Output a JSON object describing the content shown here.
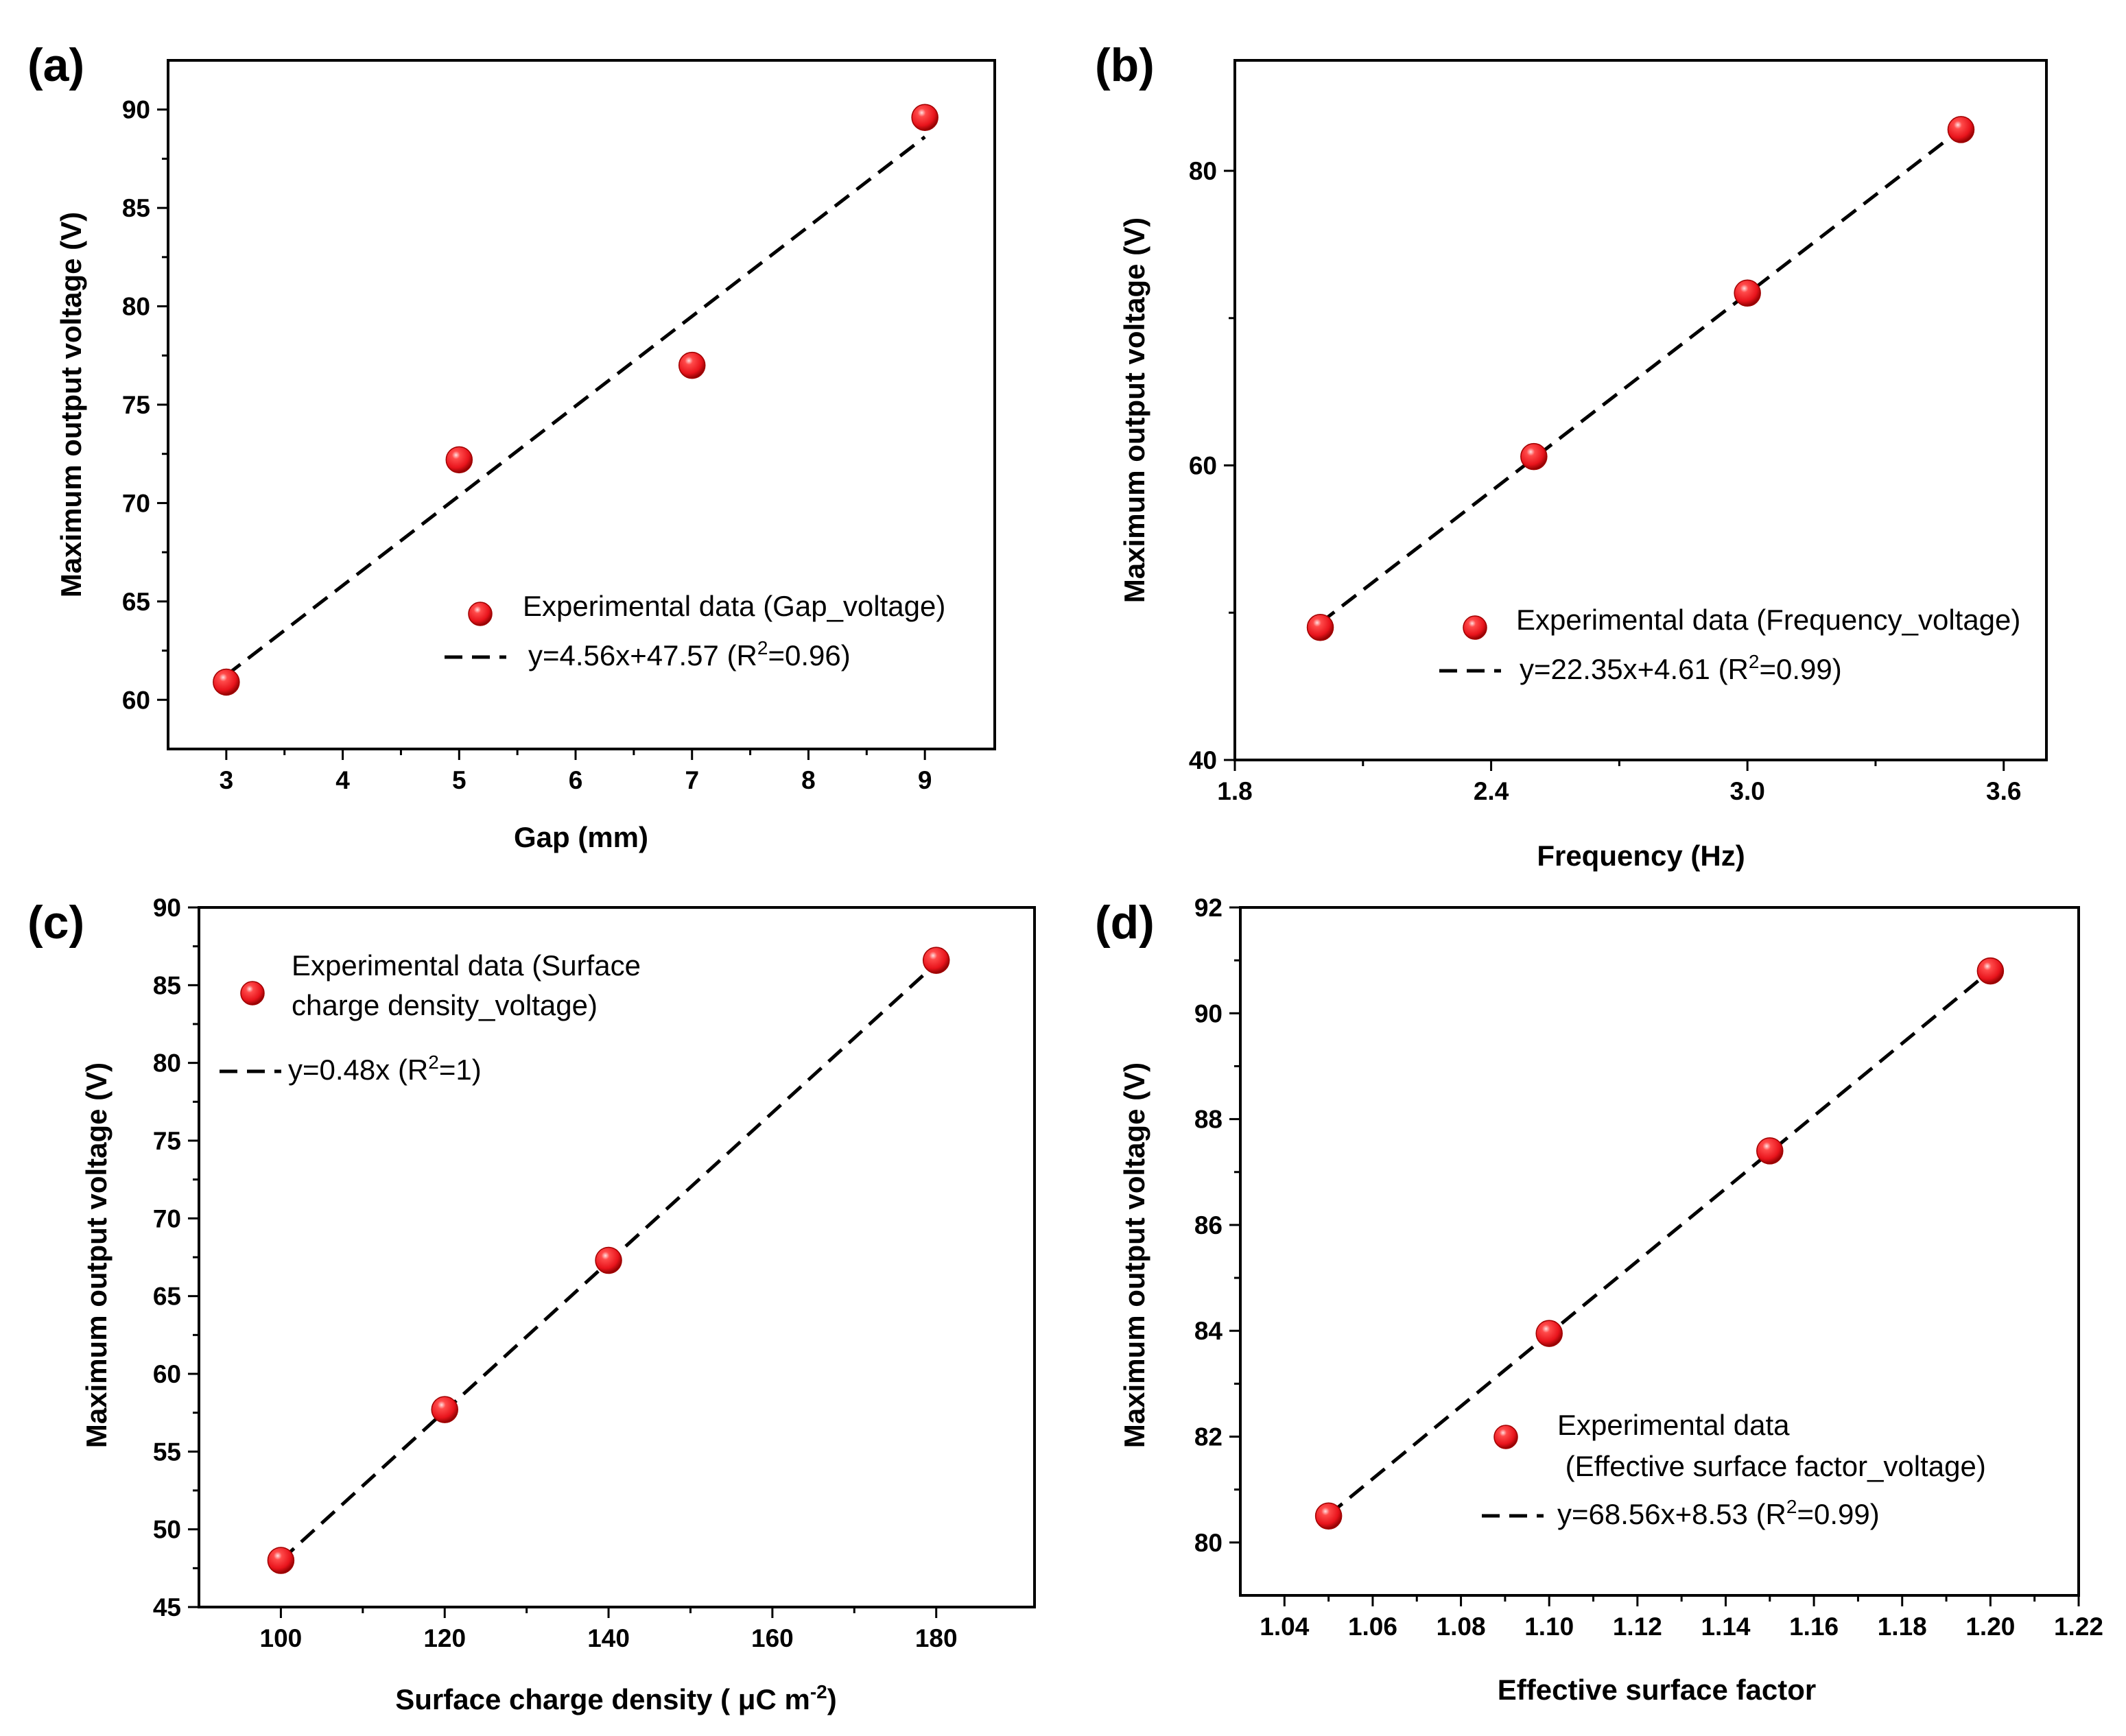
{
  "chart_data": [
    {
      "panel_label": "(a)",
      "type": "scatter",
      "xlabel": "Gap (mm)",
      "ylabel": "Maximum output voltage (V)",
      "xlim": [
        2.5,
        9.6
      ],
      "ylim": [
        57.5,
        92.5
      ],
      "xticks": [
        3,
        4,
        5,
        6,
        7,
        8,
        9
      ],
      "xtick_labels": [
        "3",
        "4",
        "5",
        "6",
        "7",
        "8",
        "9"
      ],
      "yticks": [
        60,
        65,
        70,
        75,
        80,
        85,
        90
      ],
      "ytick_labels": [
        "60",
        "65",
        "70",
        "75",
        "80",
        "85",
        "90"
      ],
      "series": [
        {
          "name": "Experimental data (Gap_voltage)",
          "x": [
            3,
            5,
            7,
            9
          ],
          "y": [
            60.9,
            72.2,
            77.0,
            89.6
          ]
        }
      ],
      "fit": {
        "label_pre": "y=4.56x+47.57 (R",
        "label_sup": "2",
        "label_post": "=0.96)",
        "slope": 4.56,
        "intercept": 47.57,
        "x_range": [
          3,
          9
        ]
      },
      "legend_position": "bottom-right"
    },
    {
      "panel_label": "(b)",
      "type": "scatter",
      "xlabel": "Frequency (Hz)",
      "ylabel": "Maximum output voltage (V)",
      "xlim": [
        1.8,
        3.7
      ],
      "ylim": [
        40,
        87.5
      ],
      "xticks": [
        1.8,
        2.4,
        3.0,
        3.6
      ],
      "xtick_labels": [
        "1.8",
        "2.4",
        "3.0",
        "3.6"
      ],
      "yticks": [
        40,
        60,
        80
      ],
      "ytick_labels": [
        "40",
        "60",
        "80"
      ],
      "series": [
        {
          "name": "Experimental data (Frequency_voltage)",
          "x": [
            2.0,
            2.5,
            3.0,
            3.5
          ],
          "y": [
            49.0,
            60.6,
            71.7,
            82.8
          ]
        }
      ],
      "fit": {
        "label_pre": "y=22.35x+4.61 (R",
        "label_sup": "2",
        "label_post": "=0.99)",
        "slope": 22.35,
        "intercept": 4.61,
        "x_range": [
          2.0,
          3.5
        ]
      },
      "legend_position": "bottom-right"
    },
    {
      "panel_label": "(c)",
      "type": "scatter",
      "xlabel": "Surface charge density ( μC m",
      "xlabel_sup": "-2",
      "xlabel_post": ")",
      "ylabel": "Maximum output voltage (V)",
      "xlim": [
        90,
        192
      ],
      "ylim": [
        45,
        90
      ],
      "xticks": [
        100,
        120,
        140,
        160,
        180
      ],
      "xtick_labels": [
        "100",
        "120",
        "140",
        "160",
        "180"
      ],
      "yticks": [
        45,
        50,
        55,
        60,
        65,
        70,
        75,
        80,
        85,
        90
      ],
      "ytick_labels": [
        "45",
        "50",
        "55",
        "60",
        "65",
        "70",
        "75",
        "80",
        "85",
        "90"
      ],
      "series": [
        {
          "name": "Experimental data (Surface charge density_voltage)",
          "name_lines": [
            "Experimental data (Surface",
            "charge density_voltage)"
          ],
          "x": [
            100,
            120,
            140,
            180
          ],
          "y": [
            48.0,
            57.7,
            67.3,
            86.6
          ]
        }
      ],
      "fit": {
        "label_pre": "y=0.48x (R",
        "label_sup": "2",
        "label_post": "=1)",
        "slope": 0.48,
        "intercept": 0,
        "x_range": [
          100,
          180
        ]
      },
      "legend_position": "top-left"
    },
    {
      "panel_label": "(d)",
      "type": "scatter",
      "xlabel": "Effective surface factor",
      "ylabel": "Maximum output voltage (V)",
      "xlim": [
        1.03,
        1.22
      ],
      "ylim": [
        79,
        92
      ],
      "xticks": [
        1.04,
        1.06,
        1.08,
        1.1,
        1.12,
        1.14,
        1.16,
        1.18,
        1.2,
        1.22
      ],
      "xtick_labels": [
        "1.04",
        "1.06",
        "1.08",
        "1.10",
        "1.12",
        "1.14",
        "1.16",
        "1.18",
        "1.20",
        "1.22"
      ],
      "yticks": [
        80,
        82,
        84,
        86,
        88,
        90,
        92
      ],
      "ytick_labels": [
        "80",
        "82",
        "84",
        "86",
        "88",
        "90",
        "92"
      ],
      "series": [
        {
          "name": "Experimental data (Effective surface factor_voltage)",
          "name_lines": [
            "Experimental data",
            " (Effective surface factor_voltage)"
          ],
          "x": [
            1.05,
            1.1,
            1.15,
            1.2
          ],
          "y": [
            80.5,
            83.95,
            87.4,
            90.8
          ]
        }
      ],
      "fit": {
        "label_pre": "y=68.56x+8.53 (R",
        "label_sup": "2",
        "label_post": "=0.99)",
        "slope": 68.56,
        "intercept": 8.53,
        "x_range": [
          1.05,
          1.2
        ]
      },
      "legend_position": "bottom-right"
    }
  ],
  "colors": {
    "marker": "#e8141c",
    "marker_highlight": "#ffd0d0",
    "marker_dark": "#8a0000",
    "axis": "#000000",
    "fit_line": "#000000"
  }
}
